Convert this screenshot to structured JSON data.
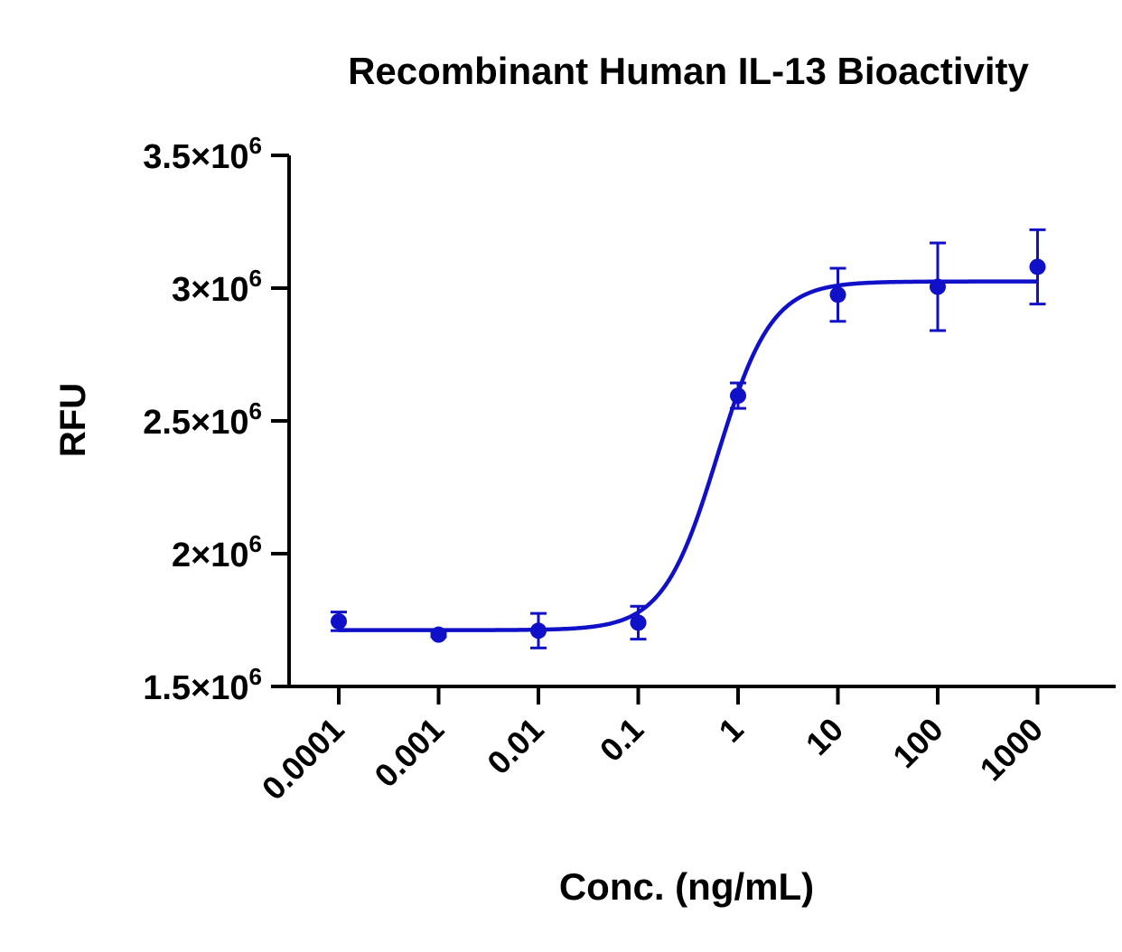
{
  "chart_data": {
    "type": "scatter",
    "title": "Recombinant Human IL-13 Bioactivity",
    "xlabel": "Conc. (ng/mL)",
    "ylabel": "RFU",
    "x_scale": "log",
    "x_ticks": [
      "0.0001",
      "0.001",
      "0.01",
      "0.1",
      "1",
      "10",
      "100",
      "1000"
    ],
    "ylim": [
      1500000,
      3500000
    ],
    "y_ticks": [
      {
        "value": 1500000,
        "mantissa": "1.5",
        "base": "×10",
        "exp": "6"
      },
      {
        "value": 2000000,
        "mantissa": "2",
        "base": "×10",
        "exp": "6"
      },
      {
        "value": 2500000,
        "mantissa": "2.5",
        "base": "×10",
        "exp": "6"
      },
      {
        "value": 3000000,
        "mantissa": "3",
        "base": "×10",
        "exp": "6"
      },
      {
        "value": 3500000,
        "mantissa": "3.5",
        "base": "×10",
        "exp": "6"
      }
    ],
    "grid": false,
    "legend": "none",
    "series": [
      {
        "color": "#1010c8",
        "points": [
          {
            "x": 0.0001,
            "y": 1745000,
            "err": 35000
          },
          {
            "x": 0.001,
            "y": 1695000,
            "err": 8000
          },
          {
            "x": 0.01,
            "y": 1710000,
            "err": 65000
          },
          {
            "x": 0.1,
            "y": 1740000,
            "err": 62000
          },
          {
            "x": 1,
            "y": 2595000,
            "err": 48000
          },
          {
            "x": 10,
            "y": 2975000,
            "err": 100000
          },
          {
            "x": 100,
            "y": 3005000,
            "err": 165000
          },
          {
            "x": 1000,
            "y": 3080000,
            "err": 140000
          }
        ],
        "fit": {
          "model": "4PL",
          "bottom": 1712000,
          "top": 3025000,
          "ec50": 0.62,
          "hill": 1.6
        }
      }
    ]
  }
}
